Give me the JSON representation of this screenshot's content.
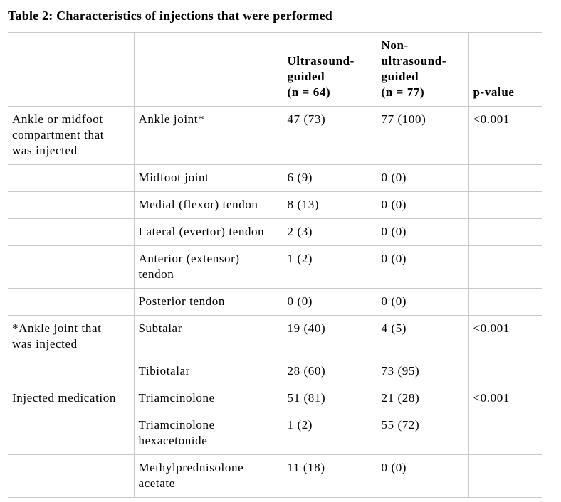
{
  "title": "Table 2: Characteristics of injections that were performed",
  "table": {
    "headers": [
      "",
      "",
      "Ultrasound-\nguided\n(n = 64)",
      "Non-\nultrasound-\nguided\n(n = 77)",
      "p-value"
    ],
    "rows": [
      {
        "cells": [
          "Ankle or midfoot\ncompartment that\nwas injected",
          "Ankle joint*",
          "47 (73)",
          "77 (100)",
          "<0.001"
        ]
      },
      {
        "cells": [
          "",
          "Midfoot joint",
          "6 (9)",
          "0 (0)",
          ""
        ]
      },
      {
        "cells": [
          "",
          "Medial (flexor) tendon",
          "8 (13)",
          "0 (0)",
          ""
        ]
      },
      {
        "cells": [
          "",
          "Lateral (evertor) tendon",
          "2 (3)",
          "0 (0)",
          ""
        ]
      },
      {
        "cells": [
          "",
          "Anterior (extensor)\ntendon",
          "1 (2)",
          "0 (0)",
          ""
        ]
      },
      {
        "cells": [
          "",
          "Posterior tendon",
          "0 (0)",
          "0 (0)",
          ""
        ]
      },
      {
        "cells": [
          "*Ankle joint that\nwas injected",
          "Subtalar",
          "19 (40)",
          "4 (5)",
          "<0.001"
        ]
      },
      {
        "cells": [
          "",
          "Tibiotalar",
          "28 (60)",
          "73 (95)",
          ""
        ]
      },
      {
        "cells": [
          "Injected medication",
          "Triamcinolone",
          "51 (81)",
          "21 (28)",
          "<0.001"
        ]
      },
      {
        "cells": [
          "",
          "Triamcinolone\nhexacetonide",
          "1 (2)",
          "55 (72)",
          ""
        ]
      },
      {
        "cells": [
          "",
          "Methylprednisolone\nacetate",
          "11 (18)",
          "0 (0)",
          ""
        ]
      }
    ]
  },
  "colors": {
    "border": "#c9c9c9",
    "text": "#000000",
    "background": "#ffffff"
  }
}
